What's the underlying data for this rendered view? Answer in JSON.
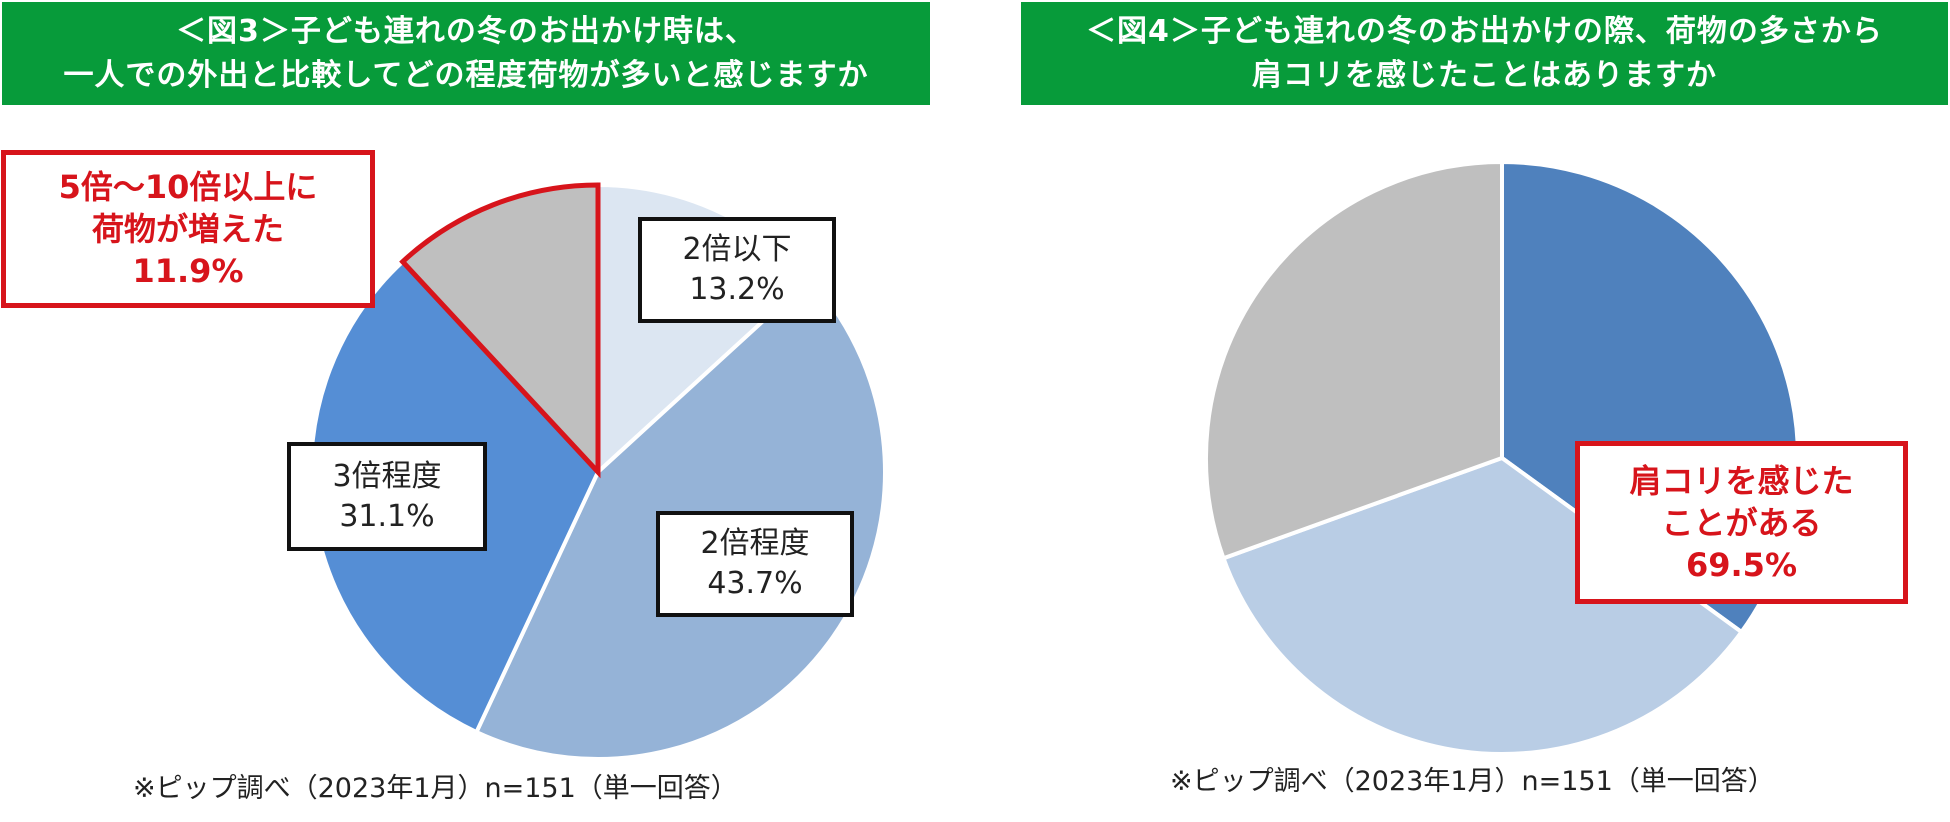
{
  "chart_data": [
    {
      "type": "pie",
      "title_lines": [
        "＜図3＞子ども連れの冬のお出かけ時は、",
        "一人での外出と比較してどの程度荷物が多いと感じますか"
      ],
      "slices": [
        {
          "name": "2倍以下",
          "value": 13.2,
          "label": "13.2%",
          "color": "#dce6f2"
        },
        {
          "name": "2倍程度",
          "value": 43.7,
          "label": "43.7%",
          "color": "#95b3d7"
        },
        {
          "name": "3倍程度",
          "value": 31.1,
          "label": "31.1%",
          "color": "#558ed5"
        },
        {
          "name": "5倍〜10倍以上",
          "value": 11.9,
          "label": "11.9%",
          "color": "#bfbfbf"
        }
      ],
      "callout_lines": [
        "5倍〜10倍以上に",
        "荷物が増えた",
        "11.9%"
      ],
      "note": "※ピップ調べ（2023年1月）n=151（単一回答）"
    },
    {
      "type": "pie",
      "title_lines": [
        "＜図4＞子ども連れの冬のお出かけの際、荷物の多さから",
        "肩コリを感じたことはありますか"
      ],
      "slices": [
        {
          "value": 35.0,
          "color": "#4f81bd"
        },
        {
          "value": 34.5,
          "color": "#b9cde5"
        },
        {
          "value": 30.5,
          "color": "#bfbfbf"
        }
      ],
      "callout_lines": [
        "肩コリを感じた",
        "ことがある",
        "69.5%"
      ],
      "note": "※ピップ調べ（2023年1月）n=151（単一回答）"
    }
  ],
  "highlight_color": "#d7141b"
}
